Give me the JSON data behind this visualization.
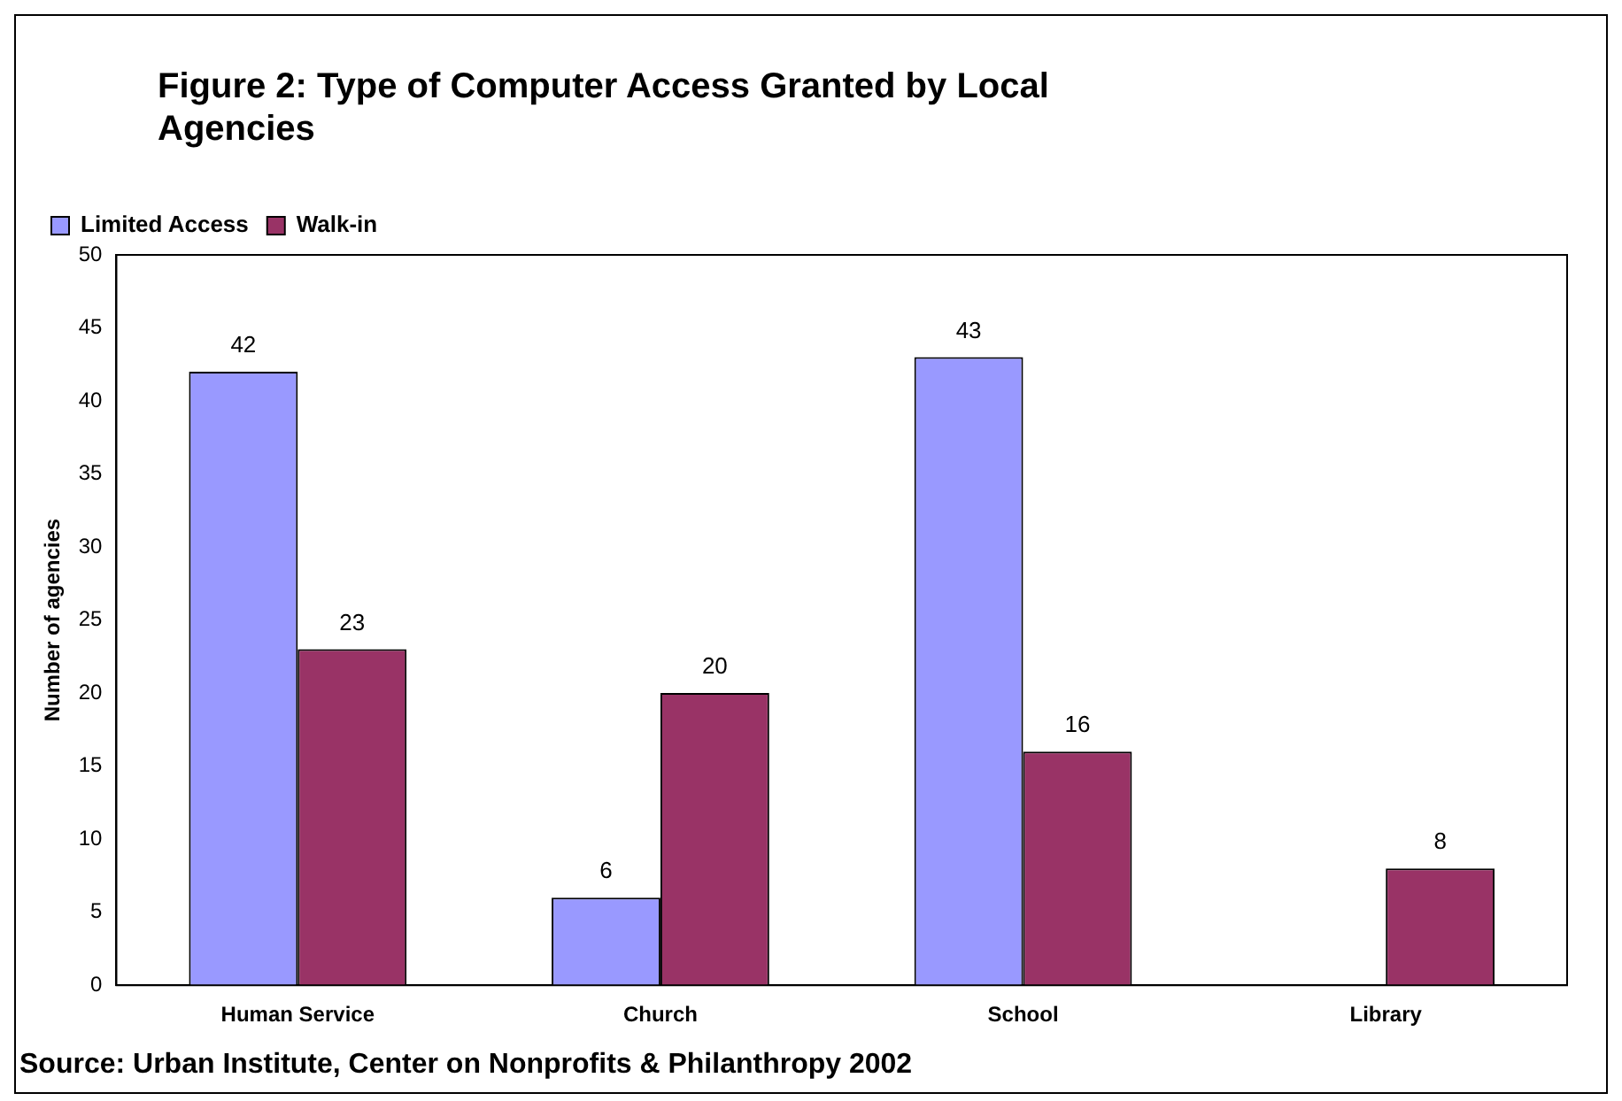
{
  "chart_data": {
    "type": "bar",
    "title": "Figure 2: Type of Computer Access Granted by Local Agencies",
    "categories": [
      "Human Service",
      "Church",
      "School",
      "Library"
    ],
    "series": [
      {
        "name": "Limited Access",
        "color": "#9999ff",
        "values": [
          42,
          6,
          43,
          0
        ],
        "value_labels": [
          "42",
          "6",
          "43",
          null
        ]
      },
      {
        "name": "Walk-in",
        "color": "#993366",
        "values": [
          23,
          20,
          16,
          8
        ],
        "value_labels": [
          "23",
          "20",
          "16",
          "8"
        ]
      }
    ],
    "ylabel": "Number of agencies",
    "ylim": [
      0,
      50
    ],
    "yticks": [
      0,
      5,
      10,
      15,
      20,
      25,
      30,
      35,
      40,
      45,
      50
    ],
    "grid": false,
    "legend": "top left",
    "annotations": [
      "Source:  Urban Institute, Center on Nonprofits & Philanthropy 2002"
    ]
  }
}
